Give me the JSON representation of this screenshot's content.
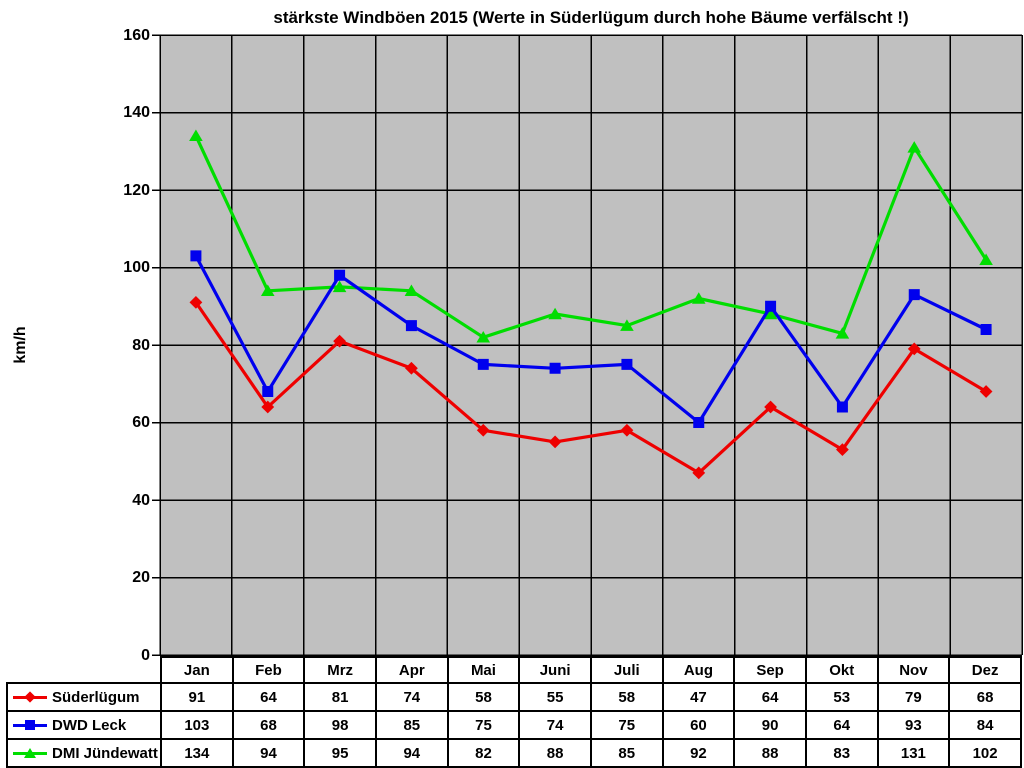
{
  "title": "stärkste Windböen 2015 (Werte in Süderlügum durch hohe Bäume verfälscht !)",
  "chart_data": {
    "type": "line",
    "title": "stärkste Windböen 2015 (Werte in Süderlügum durch hohe Bäume verfälscht !)",
    "ylabel": "km/h",
    "xlabel": "",
    "categories": [
      "Jan",
      "Feb",
      "Mrz",
      "Apr",
      "Mai",
      "Juni",
      "Juli",
      "Aug",
      "Sep",
      "Okt",
      "Nov",
      "Dez"
    ],
    "series": [
      {
        "name": "Süderlügum",
        "marker": "diamond",
        "color": "#ee0000",
        "values": [
          91,
          64,
          81,
          74,
          58,
          55,
          58,
          47,
          64,
          53,
          79,
          68
        ]
      },
      {
        "name": "DWD Leck",
        "marker": "square",
        "color": "#0000ee",
        "values": [
          103,
          68,
          98,
          85,
          75,
          74,
          75,
          60,
          90,
          64,
          93,
          84
        ]
      },
      {
        "name": "DMI Jündewatt",
        "marker": "triangle",
        "color": "#00dd00",
        "values": [
          134,
          94,
          95,
          94,
          82,
          88,
          85,
          92,
          88,
          83,
          131,
          102
        ]
      }
    ],
    "ylim": [
      0,
      160
    ],
    "yticks": [
      0,
      20,
      40,
      60,
      80,
      100,
      120,
      140,
      160
    ],
    "grid": true,
    "plot_bg_color": "#c0c0c0",
    "grid_color": "#000000",
    "legend_position": "table-left"
  }
}
